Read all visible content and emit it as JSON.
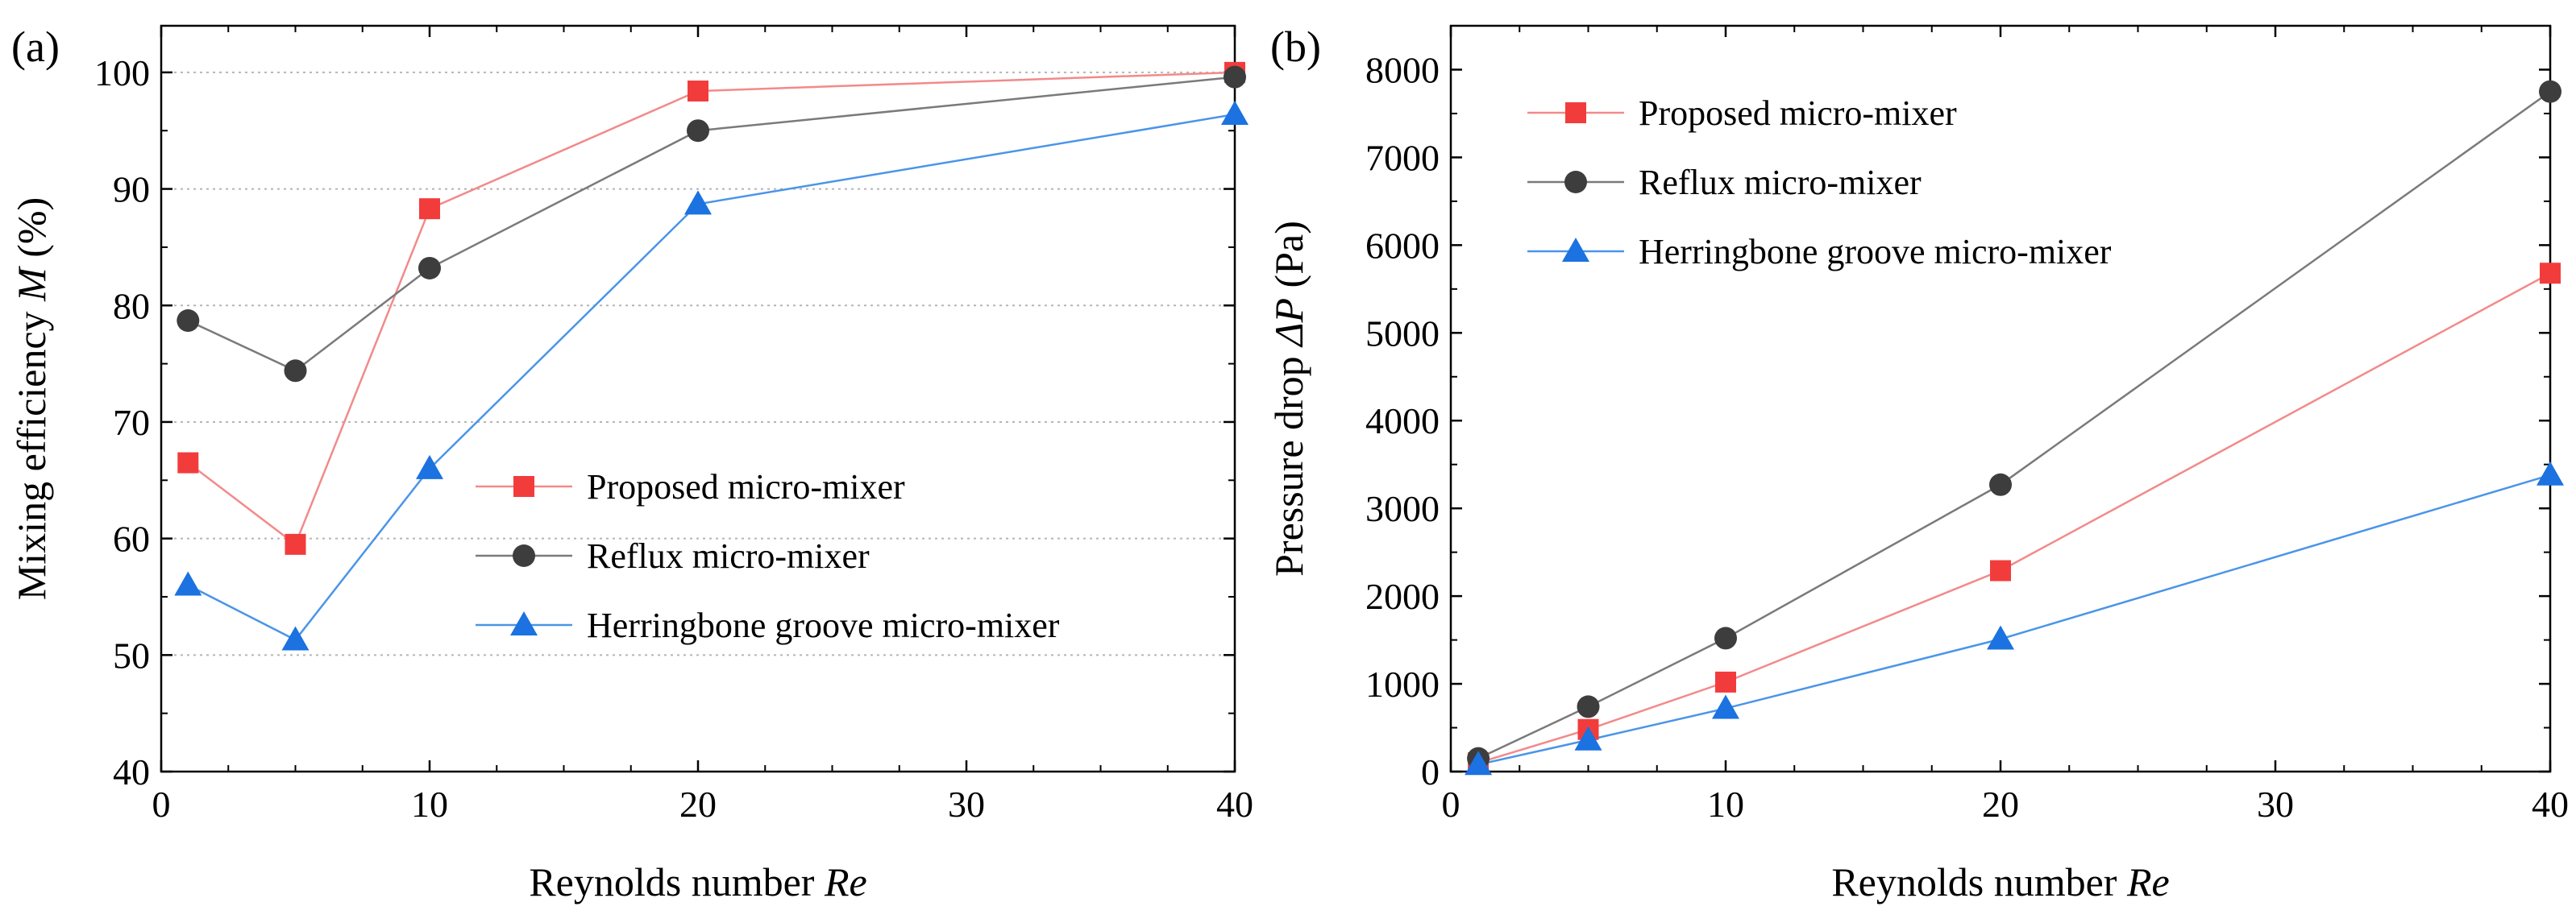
{
  "chart_data": [
    {
      "type": "line",
      "panel_label": "(a)",
      "xlabel": "Reynolds number ",
      "xlabel_italic": "Re",
      "ylabel": "Mixing efficiency ",
      "ylabel_italic": "M",
      "ylabel_suffix": " (%)",
      "xlim": [
        0,
        40
      ],
      "ylim": [
        40,
        104
      ],
      "x_ticks": [
        0,
        10,
        20,
        30,
        40
      ],
      "y_ticks": [
        40,
        50,
        60,
        70,
        80,
        90,
        100
      ],
      "x_tick_labels": [
        "0",
        "10",
        "20",
        "30",
        "40"
      ],
      "y_tick_labels": [
        "40",
        "50",
        "60",
        "70",
        "80",
        "90",
        "100"
      ],
      "grid": true,
      "legend_position": "center-right",
      "x_axis_break": "between 20 and 30",
      "series": [
        {
          "name": "Proposed micro-mixer",
          "marker": "square",
          "color": "#f23c3c",
          "line_color": "#f28a8a",
          "x": [
            1,
            5,
            10,
            20,
            40
          ],
          "y": [
            66.5,
            59.5,
            88.3,
            98.4,
            100.0
          ]
        },
        {
          "name": "Reflux micro-mixer",
          "marker": "circle",
          "color": "#3d3d3d",
          "line_color": "#7a7a7a",
          "x": [
            1,
            5,
            10,
            20,
            40
          ],
          "y": [
            78.7,
            74.4,
            83.2,
            95.0,
            99.6
          ]
        },
        {
          "name": "Herringbone groove micro-mixer",
          "marker": "triangle",
          "color": "#1b72e0",
          "line_color": "#4a95e8",
          "x": [
            1,
            5,
            10,
            20,
            40
          ],
          "y": [
            56.0,
            51.3,
            66.0,
            88.7,
            96.4
          ]
        }
      ]
    },
    {
      "type": "line",
      "panel_label": "(b)",
      "xlabel": "Reynolds number ",
      "xlabel_italic": "Re",
      "ylabel": "Pressure drop ",
      "ylabel_italic": "ΔP",
      "ylabel_suffix": " (Pa)",
      "xlim": [
        0,
        40
      ],
      "ylim": [
        0,
        8500
      ],
      "x_ticks": [
        0,
        10,
        20,
        30,
        40
      ],
      "y_ticks": [
        0,
        1000,
        2000,
        3000,
        4000,
        5000,
        6000,
        7000,
        8000
      ],
      "x_tick_labels": [
        "0",
        "10",
        "20",
        "30",
        "40"
      ],
      "y_tick_labels": [
        "0",
        "1000",
        "2000",
        "3000",
        "4000",
        "5000",
        "6000",
        "7000",
        "8000"
      ],
      "grid": false,
      "legend_position": "top-left",
      "x_axis_break": "between 20 and 30",
      "series": [
        {
          "name": "Proposed micro-mixer",
          "marker": "square",
          "color": "#f23c3c",
          "line_color": "#f28a8a",
          "x": [
            1,
            5,
            10,
            20,
            40
          ],
          "y": [
            100,
            480,
            1020,
            2290,
            5680
          ]
        },
        {
          "name": "Reflux micro-mixer",
          "marker": "circle",
          "color": "#3d3d3d",
          "line_color": "#7a7a7a",
          "x": [
            1,
            5,
            10,
            20,
            40
          ],
          "y": [
            150,
            740,
            1520,
            3270,
            7750
          ]
        },
        {
          "name": "Herringbone groove micro-mixer",
          "marker": "triangle",
          "color": "#1b72e0",
          "line_color": "#4a95e8",
          "x": [
            1,
            5,
            10,
            20,
            40
          ],
          "y": [
            80,
            360,
            720,
            1510,
            3380
          ]
        }
      ]
    }
  ]
}
